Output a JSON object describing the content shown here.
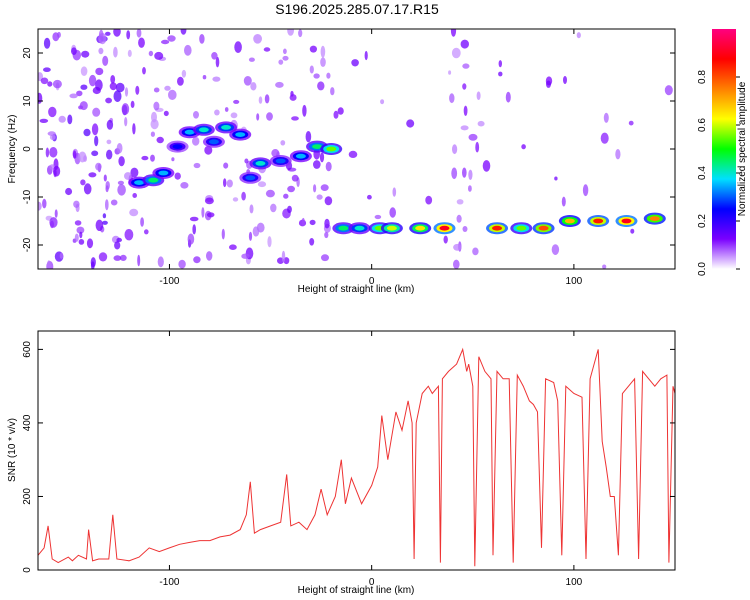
{
  "title": "S196.2025.285.07.17.R15",
  "colorbar": {
    "label": "Normalized spectral amplitude",
    "range": [
      0,
      1
    ],
    "ticks": [
      {
        "value": 0.0,
        "label": "0.0"
      },
      {
        "value": 0.2,
        "label": "0.2"
      },
      {
        "value": 0.4,
        "label": "0.4"
      },
      {
        "value": 0.6,
        "label": "0.6"
      },
      {
        "value": 0.8,
        "label": "0.8"
      }
    ],
    "colormap": [
      "#ffffff",
      "#7a00ff",
      "#0000ff",
      "#00e0ff",
      "#00ff00",
      "#ffff00",
      "#ff8000",
      "#ff0000",
      "#ff0080"
    ]
  },
  "chart_data": [
    {
      "type": "heatmap",
      "xlabel": "Height of straight line (km)",
      "ylabel": "Frequency (Hz)",
      "xlim": [
        -165,
        150
      ],
      "ylim": [
        -25,
        25
      ],
      "xticks": [
        {
          "value": -100,
          "label": "-100"
        },
        {
          "value": 0,
          "label": "0"
        },
        {
          "value": 100,
          "label": "100"
        }
      ],
      "yticks": [
        {
          "value": -20,
          "label": "-20"
        },
        {
          "value": -10,
          "label": "-10"
        },
        {
          "value": 0,
          "label": "0"
        },
        {
          "value": 10,
          "label": "10"
        },
        {
          "value": 20,
          "label": "20"
        }
      ],
      "ridge": [
        {
          "x": -115,
          "y": -7.0,
          "amp": 0.35
        },
        {
          "x": -108,
          "y": -6.5,
          "amp": 0.45
        },
        {
          "x": -103,
          "y": -5.0,
          "amp": 0.35
        },
        {
          "x": -96,
          "y": 0.5,
          "amp": 0.25
        },
        {
          "x": -90,
          "y": 3.5,
          "amp": 0.35
        },
        {
          "x": -83,
          "y": 4.0,
          "amp": 0.4
        },
        {
          "x": -78,
          "y": 1.5,
          "amp": 0.3
        },
        {
          "x": -72,
          "y": 4.5,
          "amp": 0.4
        },
        {
          "x": -65,
          "y": 3.0,
          "amp": 0.35
        },
        {
          "x": -60,
          "y": -6.0,
          "amp": 0.3
        },
        {
          "x": -55,
          "y": -3.0,
          "amp": 0.4
        },
        {
          "x": -45,
          "y": -2.5,
          "amp": 0.3
        },
        {
          "x": -35,
          "y": -1.5,
          "amp": 0.35
        },
        {
          "x": -27,
          "y": 0.5,
          "amp": 0.45
        },
        {
          "x": -20,
          "y": 0.0,
          "amp": 0.55
        },
        {
          "x": -14,
          "y": -16.5,
          "amp": 0.45
        },
        {
          "x": -6,
          "y": -16.5,
          "amp": 0.4
        },
        {
          "x": 4,
          "y": -16.5,
          "amp": 0.55
        },
        {
          "x": 10,
          "y": -16.5,
          "amp": 0.6
        },
        {
          "x": 24,
          "y": -16.5,
          "amp": 0.65
        },
        {
          "x": 36,
          "y": -16.5,
          "amp": 0.9
        },
        {
          "x": 62,
          "y": -16.5,
          "amp": 0.85
        },
        {
          "x": 74,
          "y": -16.5,
          "amp": 0.55
        },
        {
          "x": 85,
          "y": -16.5,
          "amp": 0.8
        },
        {
          "x": 98,
          "y": -15.0,
          "amp": 0.7
        },
        {
          "x": 112,
          "y": -15.0,
          "amp": 0.85
        },
        {
          "x": 126,
          "y": -15.0,
          "amp": 0.9
        },
        {
          "x": 140,
          "y": -14.5,
          "amp": 0.75
        }
      ]
    },
    {
      "type": "line",
      "xlabel": "Height of straight line (km)",
      "ylabel": "SNR (10 * v/v)",
      "xlim": [
        -165,
        150
      ],
      "ylim": [
        0,
        650
      ],
      "color": "#ee3333",
      "xticks": [
        {
          "value": -100,
          "label": "-100"
        },
        {
          "value": 0,
          "label": "0"
        },
        {
          "value": 100,
          "label": "100"
        }
      ],
      "yticks": [
        {
          "value": 0,
          "label": "0"
        },
        {
          "value": 200,
          "label": "200"
        },
        {
          "value": 400,
          "label": "400"
        },
        {
          "value": 600,
          "label": "600"
        }
      ],
      "series": [
        {
          "values": [
            [
              -165,
              40
            ],
            [
              -162,
              60
            ],
            [
              -160,
              120
            ],
            [
              -158,
              30
            ],
            [
              -155,
              20
            ],
            [
              -150,
              35
            ],
            [
              -148,
              25
            ],
            [
              -145,
              40
            ],
            [
              -141,
              30
            ],
            [
              -140,
              110
            ],
            [
              -138,
              25
            ],
            [
              -135,
              30
            ],
            [
              -130,
              30
            ],
            [
              -128,
              150
            ],
            [
              -126,
              30
            ],
            [
              -120,
              25
            ],
            [
              -115,
              35
            ],
            [
              -110,
              60
            ],
            [
              -105,
              50
            ],
            [
              -100,
              60
            ],
            [
              -95,
              70
            ],
            [
              -90,
              75
            ],
            [
              -85,
              80
            ],
            [
              -80,
              80
            ],
            [
              -75,
              90
            ],
            [
              -70,
              95
            ],
            [
              -65,
              110
            ],
            [
              -62,
              150
            ],
            [
              -60,
              240
            ],
            [
              -58,
              100
            ],
            [
              -55,
              110
            ],
            [
              -50,
              120
            ],
            [
              -45,
              130
            ],
            [
              -42,
              260
            ],
            [
              -40,
              120
            ],
            [
              -36,
              130
            ],
            [
              -32,
              110
            ],
            [
              -28,
              150
            ],
            [
              -25,
              220
            ],
            [
              -22,
              150
            ],
            [
              -18,
              200
            ],
            [
              -15,
              300
            ],
            [
              -13,
              180
            ],
            [
              -10,
              250
            ],
            [
              -5,
              180
            ],
            [
              0,
              230
            ],
            [
              3,
              280
            ],
            [
              5,
              420
            ],
            [
              8,
              300
            ],
            [
              12,
              430
            ],
            [
              15,
              380
            ],
            [
              18,
              460
            ],
            [
              20,
              400
            ],
            [
              21,
              30
            ],
            [
              22,
              400
            ],
            [
              25,
              480
            ],
            [
              28,
              500
            ],
            [
              30,
              480
            ],
            [
              33,
              500
            ],
            [
              34,
              20
            ],
            [
              35,
              520
            ],
            [
              38,
              540
            ],
            [
              42,
              560
            ],
            [
              45,
              600
            ],
            [
              47,
              540
            ],
            [
              48,
              560
            ],
            [
              50,
              500
            ],
            [
              51,
              10
            ],
            [
              53,
              580
            ],
            [
              56,
              540
            ],
            [
              59,
              520
            ],
            [
              60,
              40
            ],
            [
              62,
              540
            ],
            [
              65,
              520
            ],
            [
              68,
              520
            ],
            [
              70,
              20
            ],
            [
              72,
              530
            ],
            [
              75,
              500
            ],
            [
              78,
              460
            ],
            [
              80,
              450
            ],
            [
              82,
              430
            ],
            [
              84,
              60
            ],
            [
              86,
              520
            ],
            [
              90,
              510
            ],
            [
              92,
              460
            ],
            [
              94,
              40
            ],
            [
              96,
              500
            ],
            [
              100,
              480
            ],
            [
              104,
              470
            ],
            [
              106,
              30
            ],
            [
              108,
              520
            ],
            [
              110,
              560
            ],
            [
              112,
              600
            ],
            [
              114,
              350
            ],
            [
              116,
              280
            ],
            [
              118,
              200
            ],
            [
              120,
              200
            ],
            [
              122,
              40
            ],
            [
              124,
              480
            ],
            [
              127,
              500
            ],
            [
              130,
              520
            ],
            [
              132,
              30
            ],
            [
              134,
              540
            ],
            [
              137,
              520
            ],
            [
              140,
              500
            ],
            [
              143,
              520
            ],
            [
              146,
              530
            ],
            [
              147,
              20
            ],
            [
              149,
              500
            ],
            [
              150,
              480
            ]
          ]
        }
      ]
    }
  ]
}
